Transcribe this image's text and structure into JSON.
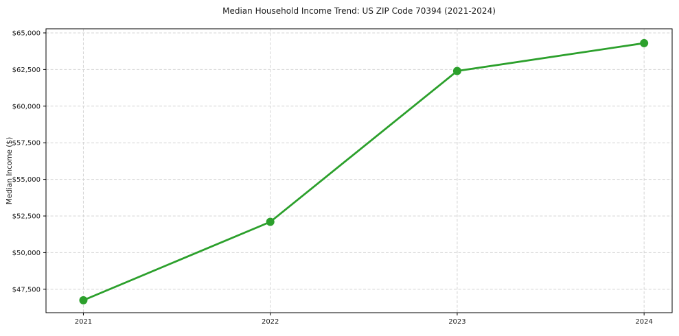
{
  "chart": {
    "title": "Median Household Income Trend: US ZIP Code 70394 (2021-2024)",
    "ylabel": "Median Income ($)"
  },
  "chart_data": {
    "type": "line",
    "title": "Median Household Income Trend: US ZIP Code 70394 (2021-2024)",
    "xlabel": "",
    "ylabel": "Median Income ($)",
    "series_name": "Median Household Income",
    "x": [
      2021,
      2022,
      2023,
      2024
    ],
    "values": [
      46750,
      52100,
      62400,
      64300
    ],
    "xticks": [
      2021,
      2022,
      2023,
      2024
    ],
    "xtick_labels": [
      "2021",
      "2022",
      "2023",
      "2024"
    ],
    "yticks": [
      47500,
      50000,
      52500,
      55000,
      57500,
      60000,
      62500,
      65000
    ],
    "ytick_prefix": "$",
    "xlim": [
      2020.8,
      2024.15
    ],
    "ylim": [
      45900,
      65280
    ],
    "grid": true,
    "grid_style": "dashed",
    "legend_position": "none",
    "colors": {
      "line": "#2ca02c",
      "marker": "#2ca02c",
      "grid": "#d4d4d4",
      "spine": "#000000",
      "tick_text": "#1a1a1a",
      "background": "#ffffff"
    },
    "marker": "circle",
    "marker_radius": 6,
    "line_width": 2.8
  }
}
